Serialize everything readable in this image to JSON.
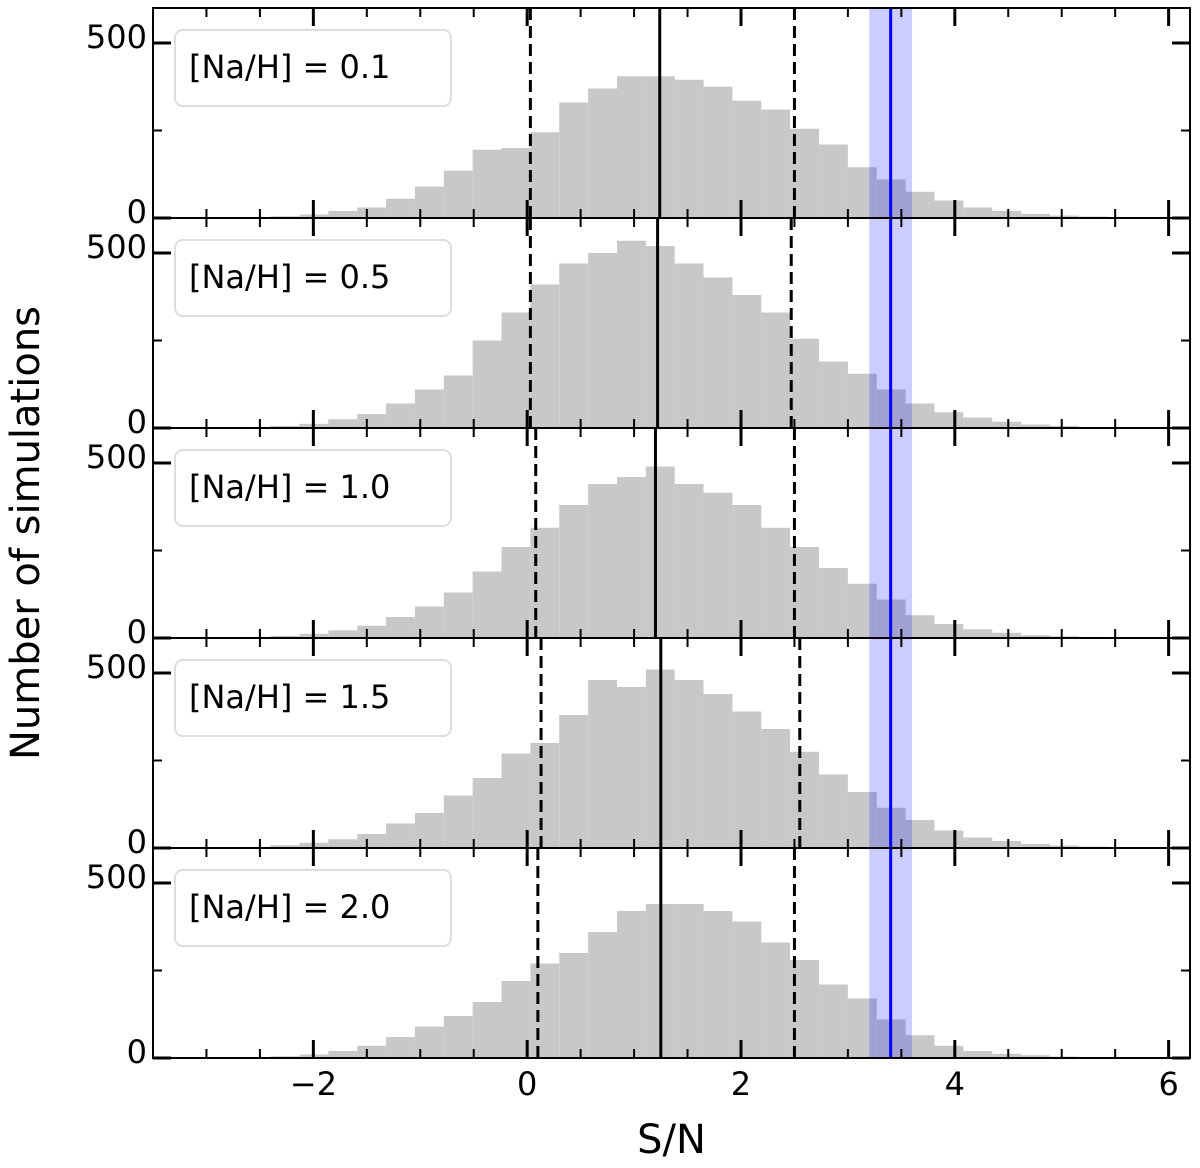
{
  "chart_data": [
    {
      "type": "histogram",
      "annotation": "[Na/H] = 0.1",
      "ylabel": "Number of simulations",
      "bins": [
        -2.94,
        -2.67,
        -2.4,
        -2.13,
        -1.86,
        -1.59,
        -1.32,
        -1.05,
        -0.78,
        -0.51,
        -0.24,
        0.03,
        0.3,
        0.57,
        0.84,
        1.11,
        1.38,
        1.65,
        1.92,
        2.19,
        2.46,
        2.73,
        3.0,
        3.27,
        3.54,
        3.81,
        4.08,
        4.35,
        4.62,
        4.89,
        5.16,
        5.43,
        5.7,
        5.97
      ],
      "values": [
        0,
        2,
        5,
        10,
        20,
        30,
        55,
        90,
        135,
        195,
        200,
        245,
        330,
        370,
        405,
        405,
        395,
        375,
        335,
        310,
        255,
        210,
        145,
        110,
        75,
        50,
        30,
        20,
        12,
        7,
        4,
        2,
        1
      ],
      "color": "#c8c8c8",
      "lower": 0.03,
      "median": 1.24,
      "upper": 2.5,
      "observed": 3.4,
      "observed_band": [
        3.2,
        3.6
      ],
      "observed_color": "#0000ff",
      "xlim": [
        -3.5,
        6.2
      ],
      "xticks": [
        -2,
        0,
        2,
        4,
        6
      ],
      "ylim": [
        0,
        600
      ],
      "yticks": [
        0,
        500
      ]
    },
    {
      "type": "histogram",
      "annotation": "[Na/H] = 0.5",
      "bins": [
        -2.94,
        -2.67,
        -2.4,
        -2.13,
        -1.86,
        -1.59,
        -1.32,
        -1.05,
        -0.78,
        -0.51,
        -0.24,
        0.03,
        0.3,
        0.57,
        0.84,
        1.11,
        1.38,
        1.65,
        1.92,
        2.19,
        2.46,
        2.73,
        3.0,
        3.27,
        3.54,
        3.81,
        4.08,
        4.35,
        4.62,
        4.89,
        5.16,
        5.43,
        5.7,
        5.97
      ],
      "values": [
        0,
        3,
        6,
        12,
        25,
        40,
        70,
        110,
        150,
        250,
        330,
        410,
        470,
        500,
        535,
        520,
        470,
        430,
        380,
        330,
        255,
        190,
        155,
        110,
        70,
        45,
        30,
        18,
        10,
        6,
        3,
        2,
        1
      ],
      "color": "#c8c8c8",
      "lower": 0.03,
      "median": 1.22,
      "upper": 2.47,
      "observed": 3.4,
      "observed_band": [
        3.2,
        3.6
      ],
      "observed_color": "#0000ff",
      "xlim": [
        -3.5,
        6.2
      ],
      "xticks": [
        -2,
        0,
        2,
        4,
        6
      ],
      "ylim": [
        0,
        600
      ],
      "yticks": [
        0,
        500
      ]
    },
    {
      "type": "histogram",
      "annotation": "[Na/H] = 1.0",
      "bins": [
        -2.94,
        -2.67,
        -2.4,
        -2.13,
        -1.86,
        -1.59,
        -1.32,
        -1.05,
        -0.78,
        -0.51,
        -0.24,
        0.03,
        0.3,
        0.57,
        0.84,
        1.11,
        1.38,
        1.65,
        1.92,
        2.19,
        2.46,
        2.73,
        3.0,
        3.27,
        3.54,
        3.81,
        4.08,
        4.35,
        4.62,
        4.89,
        5.16,
        5.43,
        5.7,
        5.97
      ],
      "values": [
        0,
        3,
        6,
        12,
        22,
        35,
        60,
        90,
        130,
        190,
        260,
        315,
        380,
        440,
        460,
        490,
        440,
        415,
        380,
        315,
        260,
        200,
        155,
        110,
        65,
        40,
        25,
        15,
        8,
        5,
        3,
        1,
        1
      ],
      "color": "#c8c8c8",
      "lower": 0.08,
      "median": 1.2,
      "upper": 2.5,
      "observed": 3.4,
      "observed_band": [
        3.2,
        3.6
      ],
      "observed_color": "#0000ff",
      "xlim": [
        -3.5,
        6.2
      ],
      "xticks": [
        -2,
        0,
        2,
        4,
        6
      ],
      "ylim": [
        0,
        600
      ],
      "yticks": [
        0,
        500
      ]
    },
    {
      "type": "histogram",
      "annotation": "[Na/H] = 1.5",
      "bins": [
        -2.94,
        -2.67,
        -2.4,
        -2.13,
        -1.86,
        -1.59,
        -1.32,
        -1.05,
        -0.78,
        -0.51,
        -0.24,
        0.03,
        0.3,
        0.57,
        0.84,
        1.11,
        1.38,
        1.65,
        1.92,
        2.19,
        2.46,
        2.73,
        3.0,
        3.27,
        3.54,
        3.81,
        4.08,
        4.35,
        4.62,
        4.89,
        5.16,
        5.43,
        5.7,
        5.97
      ],
      "values": [
        0,
        3,
        8,
        15,
        25,
        40,
        70,
        100,
        150,
        200,
        270,
        300,
        380,
        480,
        460,
        510,
        480,
        440,
        390,
        340,
        275,
        210,
        160,
        115,
        80,
        50,
        30,
        20,
        12,
        7,
        4,
        2,
        1
      ],
      "color": "#c8c8c8",
      "lower": 0.13,
      "median": 1.25,
      "upper": 2.55,
      "observed": 3.4,
      "observed_band": [
        3.2,
        3.6
      ],
      "observed_color": "#0000ff",
      "xlim": [
        -3.5,
        6.2
      ],
      "xticks": [
        -2,
        0,
        2,
        4,
        6
      ],
      "ylim": [
        0,
        600
      ],
      "yticks": [
        0,
        500
      ]
    },
    {
      "type": "histogram",
      "annotation": "[Na/H] = 2.0",
      "xlabel": "S/N",
      "bins": [
        -2.94,
        -2.67,
        -2.4,
        -2.13,
        -1.86,
        -1.59,
        -1.32,
        -1.05,
        -0.78,
        -0.51,
        -0.24,
        0.03,
        0.3,
        0.57,
        0.84,
        1.11,
        1.38,
        1.65,
        1.92,
        2.19,
        2.46,
        2.73,
        3.0,
        3.27,
        3.54,
        3.81,
        4.08,
        4.35,
        4.62,
        4.89,
        5.16,
        5.43,
        5.7,
        5.97
      ],
      "values": [
        0,
        2,
        5,
        10,
        20,
        35,
        60,
        90,
        120,
        160,
        220,
        270,
        300,
        360,
        420,
        440,
        440,
        420,
        390,
        330,
        280,
        210,
        170,
        110,
        65,
        35,
        20,
        12,
        8,
        4,
        2,
        1,
        1
      ],
      "color": "#c8c8c8",
      "lower": 0.1,
      "median": 1.25,
      "upper": 2.5,
      "observed": 3.4,
      "observed_band": [
        3.2,
        3.6
      ],
      "observed_color": "#0000ff",
      "xlim": [
        -3.5,
        6.2
      ],
      "xticks": [
        {
          "value": -2,
          "label": "−2"
        },
        0,
        2,
        4,
        6
      ],
      "ylim": [
        0,
        600
      ],
      "yticks": [
        0,
        500
      ]
    }
  ]
}
